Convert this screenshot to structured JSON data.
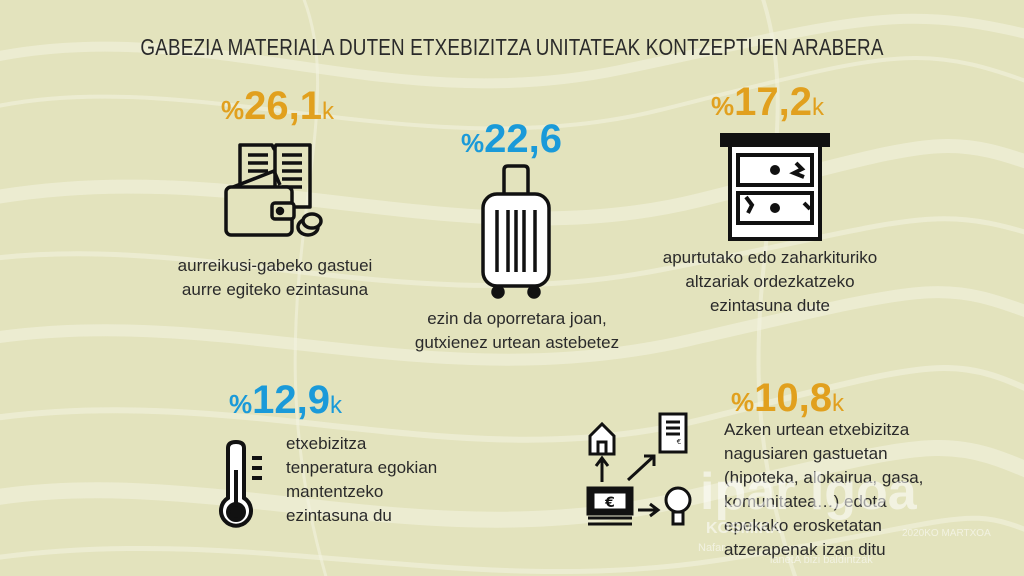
{
  "title": "GABEZIA MATERIALA DUTEN ETXEBIZITZA UNITATEAK KONTZEPTUEN ARABERA",
  "items": [
    {
      "percent_symbol": "%",
      "value": "26,1",
      "suffix": "k",
      "text": [
        "aurreikusi-gabeko gastuei",
        "aurre egiteko ezintasuna"
      ],
      "icon": "wallet-ledger-icon",
      "color": "#e1a01e"
    },
    {
      "percent_symbol": "%",
      "value": "22,6",
      "suffix": "",
      "text": [
        "ezin da oporretara joan,",
        "gutxienez urtean astebetez"
      ],
      "icon": "suitcase-icon",
      "color": "#1a9ad9"
    },
    {
      "percent_symbol": "%",
      "value": "17,2",
      "suffix": "k",
      "text": [
        "apurtutako edo zaharkituriko",
        "altzariak ordezkatzeko",
        "ezintasuna dute"
      ],
      "icon": "broken-drawer-icon",
      "color": "#e1a01e"
    },
    {
      "percent_symbol": "%",
      "value": "12,9",
      "suffix": "k",
      "text": [
        "etxebizitza",
        "tenperatura egokian",
        "mantentzeko",
        "ezintasuna du"
      ],
      "icon": "thermometer-icon",
      "color": "#1a9ad9"
    },
    {
      "percent_symbol": "%",
      "value": "10,8",
      "suffix": "k",
      "text": [
        "Azken urtean etxebizitza",
        "nagusiaren gastuetan",
        "(hipoteka, alokairua, gasa,",
        "komunitatea…) edota",
        "epekako erosketatan",
        "atzerapenak izan ditu"
      ],
      "icon": "money-flow-icon",
      "color": "#e1a01e"
    }
  ],
  "watermark": {
    "logo": "ipar  lgoa",
    "sub1": "KOSMIKA",
    "sub2": "Nafar",
    "sub3": "lanetA bizi baldintzak",
    "side": "2020KO MARTXOA"
  }
}
